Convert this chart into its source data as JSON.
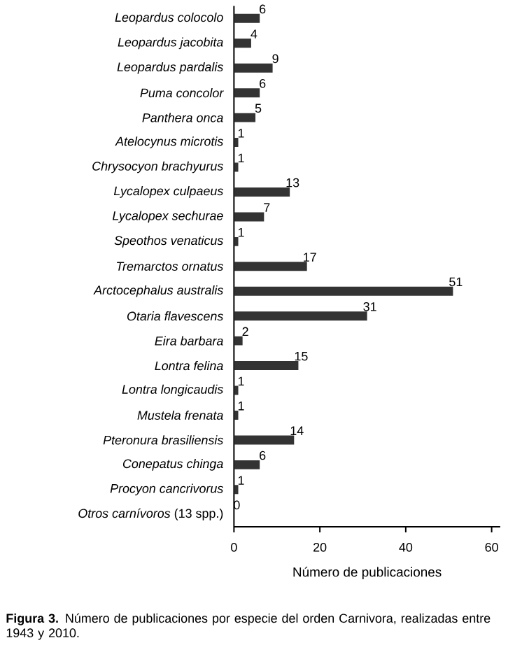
{
  "chart_data": {
    "type": "bar",
    "orientation": "horizontal",
    "categories": [
      "Leopardus colocolo",
      "Leopardus jacobita",
      "Leopardus pardalis",
      "Puma concolor",
      "Panthera onca",
      "Atelocynus microtis",
      "Chrysocyon brachyurus",
      "Lycalopex culpaeus",
      "Lycalopex sechurae",
      "Speothos venaticus",
      "Tremarctos ornatus",
      "Arctocephalus australis",
      "Otaria flavescens",
      "Eira barbara",
      "Lontra felina",
      "Lontra longicaudis",
      "Mustela frenata",
      "Pteronura brasiliensis",
      "Conepatus chinga",
      "Procyon cancrivorus",
      "*Otros carnívoros* (13 spp.)"
    ],
    "values": [
      6,
      4,
      9,
      6,
      5,
      1,
      1,
      13,
      7,
      1,
      17,
      51,
      31,
      2,
      15,
      1,
      1,
      14,
      6,
      1,
      0
    ],
    "color": "#333333",
    "data_labels": true,
    "xlim": [
      0,
      62
    ],
    "xticks": [
      0,
      20,
      40,
      60
    ],
    "xlabel": "Número de publicaciones",
    "annotations": [
      "**Figura 3.** Número de publicaciones por especie del orden Carnivora, realizadas entre 1943 y 2010."
    ]
  }
}
